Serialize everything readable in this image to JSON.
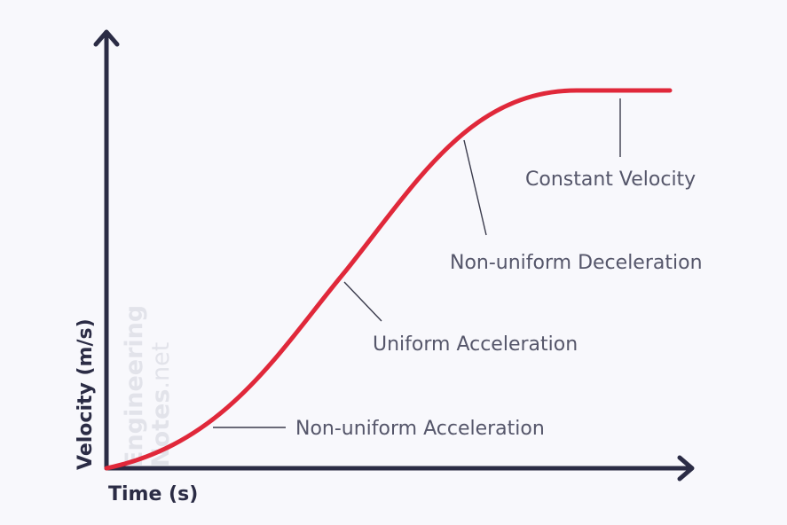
{
  "colors": {
    "background": "#f8f8fc",
    "axis": "#2b2c45",
    "curve": "#e0283a",
    "annotation_text": "#55566a",
    "leader_line": "#3a3b4c",
    "watermark": "#e2e3ea"
  },
  "axes": {
    "x_label": "Time (s)",
    "y_label": "Velocity (m/s)"
  },
  "curve": {
    "shape": "s-curve rising then levelling off",
    "color_name": "red"
  },
  "annotations": {
    "non_uniform_acceleration": "Non-uniform Acceleration",
    "uniform_acceleration": "Uniform Acceleration",
    "non_uniform_deceleration": "Non-uniform Deceleration",
    "constant_velocity": "Constant Velocity"
  },
  "watermark": {
    "line1": "Engineering",
    "line2_bold": "Notes",
    "line2_light": ".net"
  }
}
